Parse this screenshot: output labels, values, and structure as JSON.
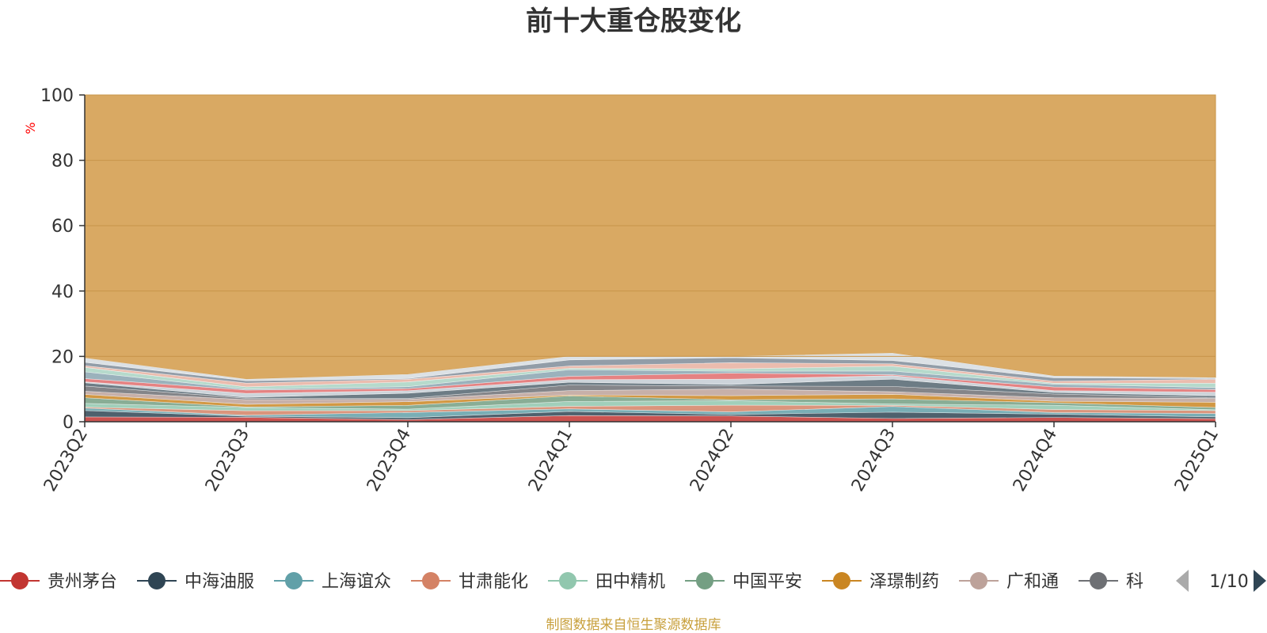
{
  "chart_data": {
    "type": "area",
    "title": "前十大重仓股变化",
    "ylabel": "%",
    "ylim": [
      0,
      100
    ],
    "yticks": [
      0,
      20,
      40,
      60,
      80,
      100
    ],
    "categories": [
      "2023Q2",
      "2023Q3",
      "2023Q4",
      "2024Q1",
      "2024Q2",
      "2024Q3",
      "2024Q4",
      "2025Q1"
    ],
    "stack_top": [
      19.5,
      13,
      14.5,
      20,
      20,
      21,
      14,
      13.5
    ],
    "background_series_color": "#d9a963",
    "layer_colors": [
      "#c23531",
      "#2f4554",
      "#61a0a8",
      "#d48265",
      "#91c7ae",
      "#749f83",
      "#ca8622",
      "#bda29a",
      "#6e7074",
      "#546570",
      "#c4ccd3",
      "#e06c6c",
      "#8aa4b0",
      "#a9d4c3",
      "#e8b0a0",
      "#7f8c99",
      "#d6dce0"
    ],
    "legend": {
      "items": [
        {
          "name": "贵州茅台",
          "color": "#c23531"
        },
        {
          "name": "中海油服",
          "color": "#2f4554"
        },
        {
          "name": "上海谊众",
          "color": "#61a0a8"
        },
        {
          "name": "甘肃能化",
          "color": "#d48265"
        },
        {
          "name": "田中精机",
          "color": "#91c7ae"
        },
        {
          "name": "中国平安",
          "color": "#749f83"
        },
        {
          "name": "泽璟制药",
          "color": "#ca8622"
        },
        {
          "name": "广和通",
          "color": "#bda29a"
        },
        {
          "name": "科",
          "color": "#6e7074"
        }
      ],
      "page": "1/10"
    },
    "footer": "制图数据来自恒生聚源数据库",
    "colors": {
      "title": "#333333",
      "ylabel": "#ff0000",
      "axis": "#333333",
      "grid": "#c8954a",
      "footer": "#c8a03c",
      "nav_prev": "#aaaaaa",
      "nav_next": "#2f4554"
    }
  }
}
